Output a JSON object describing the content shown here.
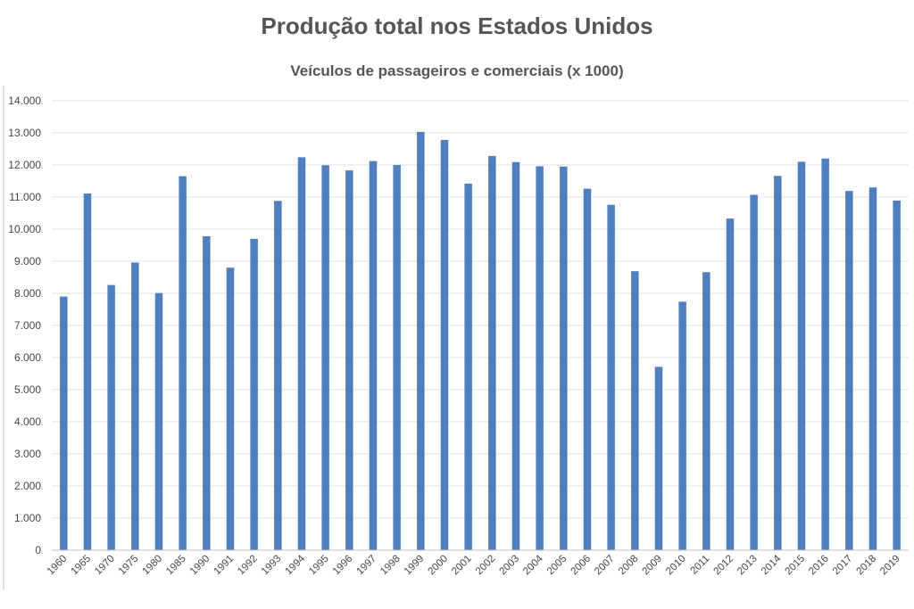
{
  "chart_data": {
    "type": "bar",
    "title": "Produção total nos Estados Unidos",
    "subtitle": "Veículos de passageiros e comerciais (x 1000)",
    "xlabel": "",
    "ylabel": "",
    "ylim": [
      0,
      14000
    ],
    "yticks": [
      "0",
      "1.000",
      "2.000",
      "3.000",
      "4.000",
      "5.000",
      "6.000",
      "7.000",
      "8.000",
      "9.000",
      "10.000",
      "11.000",
      "12.000",
      "13.000",
      "14.000"
    ],
    "categories": [
      "1960",
      "1965",
      "1970",
      "1975",
      "1980",
      "1985",
      "1990",
      "1991",
      "1992",
      "1993",
      "1994",
      "1995",
      "1996",
      "1997",
      "1998",
      "1999",
      "2000",
      "2001",
      "2002",
      "2003",
      "2004",
      "2005",
      "2006",
      "2007",
      "2008",
      "2009",
      "2010",
      "2011",
      "2012",
      "2013",
      "2014",
      "2015",
      "2016",
      "2017",
      "2018",
      "2019"
    ],
    "values": [
      7900,
      11110,
      8260,
      8960,
      8010,
      11650,
      9780,
      8800,
      9700,
      10880,
      12240,
      11990,
      11830,
      12120,
      12000,
      13030,
      12780,
      11420,
      12280,
      12090,
      11960,
      11950,
      11260,
      10760,
      8690,
      5710,
      7740,
      8660,
      10330,
      11070,
      11660,
      12100,
      12200,
      11190,
      11300,
      10890
    ],
    "grid": true,
    "legend": "none",
    "bar_color": "#4f7fbf",
    "grid_color": "#e3e3e3",
    "axis_color": "#bfbfbf"
  }
}
